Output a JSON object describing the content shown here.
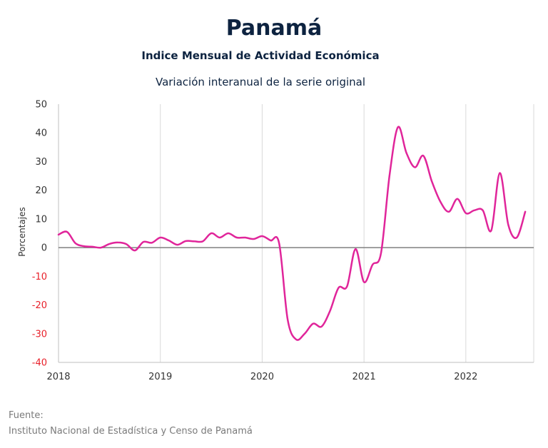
{
  "header": {
    "title": "Panamá",
    "subtitle": "Indice Mensual de  Actividad Económica",
    "subtitle2": "Variación interanual de la serie original"
  },
  "footer": {
    "source_label": "Fuente:",
    "source_text": "Instituto Nacional de Estadística y Censo de Panamá"
  },
  "colors": {
    "line": "#e0259a",
    "negative_tick": "#e8202a",
    "positive_tick": "#333333",
    "zero_line": "#7f7f7f",
    "grid": "#d9d9d9"
  },
  "chart_data": {
    "type": "line",
    "ylabel": "Porcentajes",
    "xlabel": "",
    "ylim": [
      -40,
      50
    ],
    "yticks": [
      50,
      40,
      30,
      20,
      10,
      0,
      -10,
      -20,
      -30,
      -40
    ],
    "xticks": [
      "2018",
      "2019",
      "2020",
      "2021",
      "2022"
    ],
    "xlim": [
      "2018-01",
      "2022-09"
    ],
    "grid": "vertical",
    "series": [
      {
        "x": [
          "2018-01",
          "2018-02",
          "2018-03",
          "2018-04",
          "2018-05",
          "2018-06",
          "2018-07",
          "2018-08",
          "2018-09",
          "2018-10",
          "2018-11",
          "2018-12",
          "2019-01",
          "2019-02",
          "2019-03",
          "2019-04",
          "2019-05",
          "2019-06",
          "2019-07",
          "2019-08",
          "2019-09",
          "2019-10",
          "2019-11",
          "2019-12",
          "2020-01",
          "2020-02",
          "2020-03",
          "2020-04",
          "2020-05",
          "2020-06",
          "2020-07",
          "2020-08",
          "2020-09",
          "2020-10",
          "2020-11",
          "2020-12",
          "2021-01",
          "2021-02",
          "2021-03",
          "2021-04",
          "2021-05",
          "2021-06",
          "2021-07",
          "2021-08",
          "2021-09",
          "2021-10",
          "2021-11",
          "2021-12",
          "2022-01",
          "2022-02",
          "2022-03",
          "2022-04",
          "2022-05",
          "2022-06",
          "2022-07",
          "2022-08"
        ],
        "values": [
          4.5,
          5.5,
          1.5,
          0.5,
          0.3,
          0.0,
          1.3,
          1.8,
          1.2,
          -1.0,
          2.0,
          1.7,
          3.5,
          2.5,
          1.0,
          2.3,
          2.2,
          2.2,
          5.0,
          3.5,
          5.0,
          3.5,
          3.5,
          3.0,
          4.0,
          2.5,
          1.5,
          -25.0,
          -32.0,
          -30.0,
          -26.5,
          -27.5,
          -22.0,
          -14.0,
          -13.5,
          -0.5,
          -12.0,
          -6.0,
          -2.0,
          25.0,
          42.0,
          33.0,
          28.0,
          32.0,
          23.0,
          16.0,
          12.5,
          17.0,
          12.0,
          13.0,
          13.0,
          6.0,
          26.0,
          8.0,
          3.5,
          12.5
        ]
      }
    ]
  }
}
